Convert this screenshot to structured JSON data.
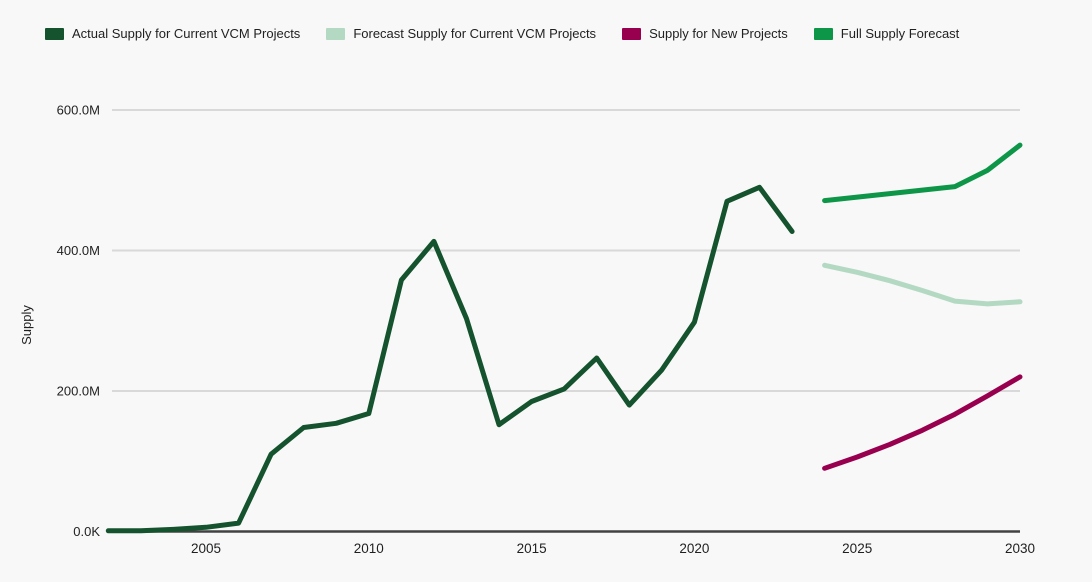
{
  "legend": {
    "items": [
      {
        "label": "Actual Supply for Current VCM Projects",
        "color": "#14532d"
      },
      {
        "label": "Forecast Supply for Current VCM Projects",
        "color": "#b3d9c3"
      },
      {
        "label": "Supply for New Projects",
        "color": "#98004f"
      },
      {
        "label": "Full Supply Forecast",
        "color": "#0d9648"
      }
    ]
  },
  "chart": {
    "background": "#f8f8f8",
    "grid_color": "#d9d9d9",
    "axis_color": "#424242",
    "tick_text_color": "#1f1f1f",
    "y_ticks": [
      {
        "value": 0,
        "label": "0.0K"
      },
      {
        "value": 200,
        "label": "200.0M"
      },
      {
        "value": 400,
        "label": "400.0M"
      },
      {
        "value": 600,
        "label": "600.0M"
      }
    ],
    "x_ticks": [
      {
        "value": 2005,
        "label": "2005"
      },
      {
        "value": 2010,
        "label": "2010"
      },
      {
        "value": 2015,
        "label": "2015"
      },
      {
        "value": 2020,
        "label": "2020"
      },
      {
        "value": 2025,
        "label": "2025"
      },
      {
        "value": 2030,
        "label": "2030"
      }
    ]
  },
  "chart_data": {
    "type": "line",
    "title": "",
    "xlabel": "",
    "ylabel": "Supply",
    "y_unit": "millions",
    "xlim": [
      2002,
      2030
    ],
    "ylim": [
      0,
      650
    ],
    "grid": true,
    "legend_position": "top",
    "series": [
      {
        "name": "Actual Supply for Current VCM Projects",
        "color": "#14532d",
        "x": [
          2002,
          2003,
          2004,
          2005,
          2006,
          2007,
          2008,
          2009,
          2010,
          2011,
          2012,
          2013,
          2014,
          2015,
          2016,
          2017,
          2018,
          2019,
          2020,
          2021,
          2022,
          2023
        ],
        "values": [
          1,
          1,
          3,
          6,
          12,
          110,
          148,
          154,
          168,
          358,
          413,
          303,
          152,
          185,
          203,
          247,
          180,
          230,
          298,
          470,
          490,
          427
        ]
      },
      {
        "name": "Forecast Supply for Current VCM Projects",
        "color": "#b3d9c3",
        "x": [
          2024,
          2025,
          2026,
          2027,
          2028,
          2029,
          2030
        ],
        "values": [
          379,
          369,
          357,
          343,
          328,
          324,
          327
        ]
      },
      {
        "name": "Supply for New Projects",
        "color": "#98004f",
        "x": [
          2024,
          2025,
          2026,
          2027,
          2028,
          2029,
          2030
        ],
        "values": [
          90,
          106,
          124,
          144,
          167,
          193,
          220
        ]
      },
      {
        "name": "Full Supply Forecast",
        "color": "#0d9648",
        "x": [
          2024,
          2025,
          2026,
          2027,
          2028,
          2029,
          2030
        ],
        "values": [
          471,
          476,
          481,
          486,
          491,
          514,
          550
        ]
      }
    ]
  }
}
